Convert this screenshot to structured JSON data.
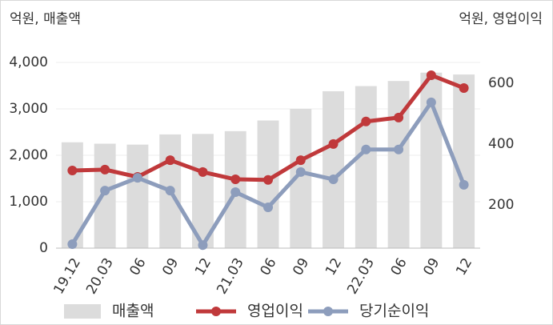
{
  "chart_data": {
    "type": "bar_line",
    "y_label": "억원, 매출액",
    "y2_label": "억원, 영업이익",
    "categories": [
      "19.12",
      "20.03",
      "06",
      "09",
      "12",
      "21.03",
      "06",
      "09",
      "12",
      "22.03",
      "06",
      "09",
      "12"
    ],
    "series": [
      {
        "name": "매출액",
        "type": "bar",
        "color": "#dcdcdc",
        "values": [
          2280,
          2250,
          2230,
          2450,
          2460,
          2520,
          2750,
          3000,
          3380,
          3490,
          3600,
          3780,
          3740
        ]
      },
      {
        "name": "영업이익",
        "type": "line",
        "axis": "y2",
        "color": "#c0393b",
        "values": [
          313,
          316,
          292,
          347,
          308,
          284,
          282,
          347,
          400,
          474,
          487,
          626,
          584
        ]
      },
      {
        "name": "당기순이익",
        "type": "line",
        "axis": "y2",
        "color": "#8d9dbc",
        "values": [
          71,
          247,
          289,
          247,
          68,
          242,
          192,
          308,
          284,
          382,
          382,
          537,
          266
        ]
      }
    ],
    "ylim": [
      0,
      4000
    ],
    "yticks": [
      0,
      {
        "value": 1000,
        "label": "1,000"
      },
      {
        "value": 2000,
        "label": "2,000"
      },
      {
        "value": 3000,
        "label": "3,000"
      },
      {
        "value": 4000,
        "label": "4,000"
      }
    ],
    "y2lim": [
      58,
      668
    ],
    "y2ticks": [
      200,
      400,
      600
    ],
    "grid": true
  }
}
